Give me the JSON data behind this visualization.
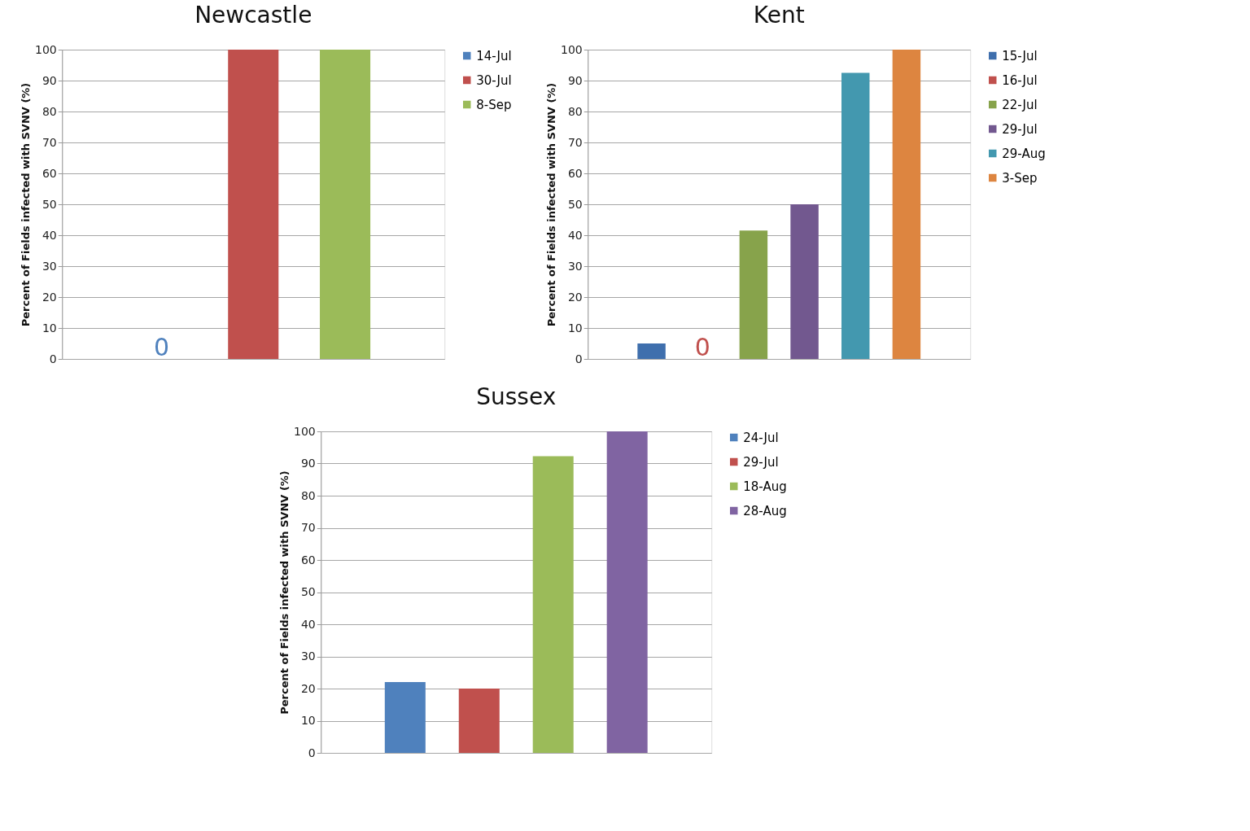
{
  "chart_data": [
    {
      "type": "bar",
      "title": "Newcastle",
      "ylabel": "Percent of Fields infected with SVNV (%)",
      "categories": [
        null
      ],
      "ylim": [
        0,
        100
      ],
      "yticks": [
        0,
        10,
        20,
        30,
        40,
        50,
        60,
        70,
        80,
        90,
        100
      ],
      "grid": "y",
      "legend": "right",
      "tick_labels": "y",
      "series": [
        {
          "name": "14-Jul",
          "color": "#4f81bd",
          "values": [
            0
          ]
        },
        {
          "name": "30-Jul",
          "color": "#c0504d",
          "values": [
            100
          ]
        },
        {
          "name": "8-Sep",
          "color": "#9bbb59",
          "values": [
            100
          ]
        }
      ],
      "annotations": [
        "0"
      ]
    },
    {
      "type": "bar",
      "title": "Kent",
      "ylabel": "Percent of Fields infected with SVNV (%)",
      "categories": [
        null
      ],
      "ylim": [
        0,
        100
      ],
      "yticks": [
        0,
        10,
        20,
        30,
        40,
        50,
        60,
        70,
        80,
        90,
        100
      ],
      "grid": "y",
      "legend": "right",
      "tick_labels": "y",
      "series": [
        {
          "name": "15-Jul",
          "color": "#3f6fad",
          "values": [
            5
          ]
        },
        {
          "name": "16-Jul",
          "color": "#c0504d",
          "values": [
            0
          ]
        },
        {
          "name": "22-Jul",
          "color": "#87a34b",
          "values": [
            41.5
          ]
        },
        {
          "name": "29-Jul",
          "color": "#72588f",
          "values": [
            50
          ]
        },
        {
          "name": "29-Aug",
          "color": "#4398af",
          "values": [
            92.5
          ]
        },
        {
          "name": "3-Sep",
          "color": "#dd8540",
          "values": [
            100
          ]
        }
      ],
      "annotations": [
        "0"
      ]
    },
    {
      "type": "bar",
      "title": "Sussex",
      "ylabel": "Percent of Fields infected with SVNV (%)",
      "categories": [
        null
      ],
      "ylim": [
        0,
        100
      ],
      "yticks": [
        0,
        10,
        20,
        30,
        40,
        50,
        60,
        70,
        80,
        90,
        100
      ],
      "grid": "y",
      "legend": "right",
      "tick_labels": "y",
      "series": [
        {
          "name": "24-Jul",
          "color": "#4f81bd",
          "values": [
            22
          ]
        },
        {
          "name": "29-Jul",
          "color": "#c0504d",
          "values": [
            20
          ]
        },
        {
          "name": "18-Aug",
          "color": "#9bbb59",
          "values": [
            92.3
          ]
        },
        {
          "name": "28-Aug",
          "color": "#8064a2",
          "values": [
            100
          ]
        }
      ]
    }
  ]
}
